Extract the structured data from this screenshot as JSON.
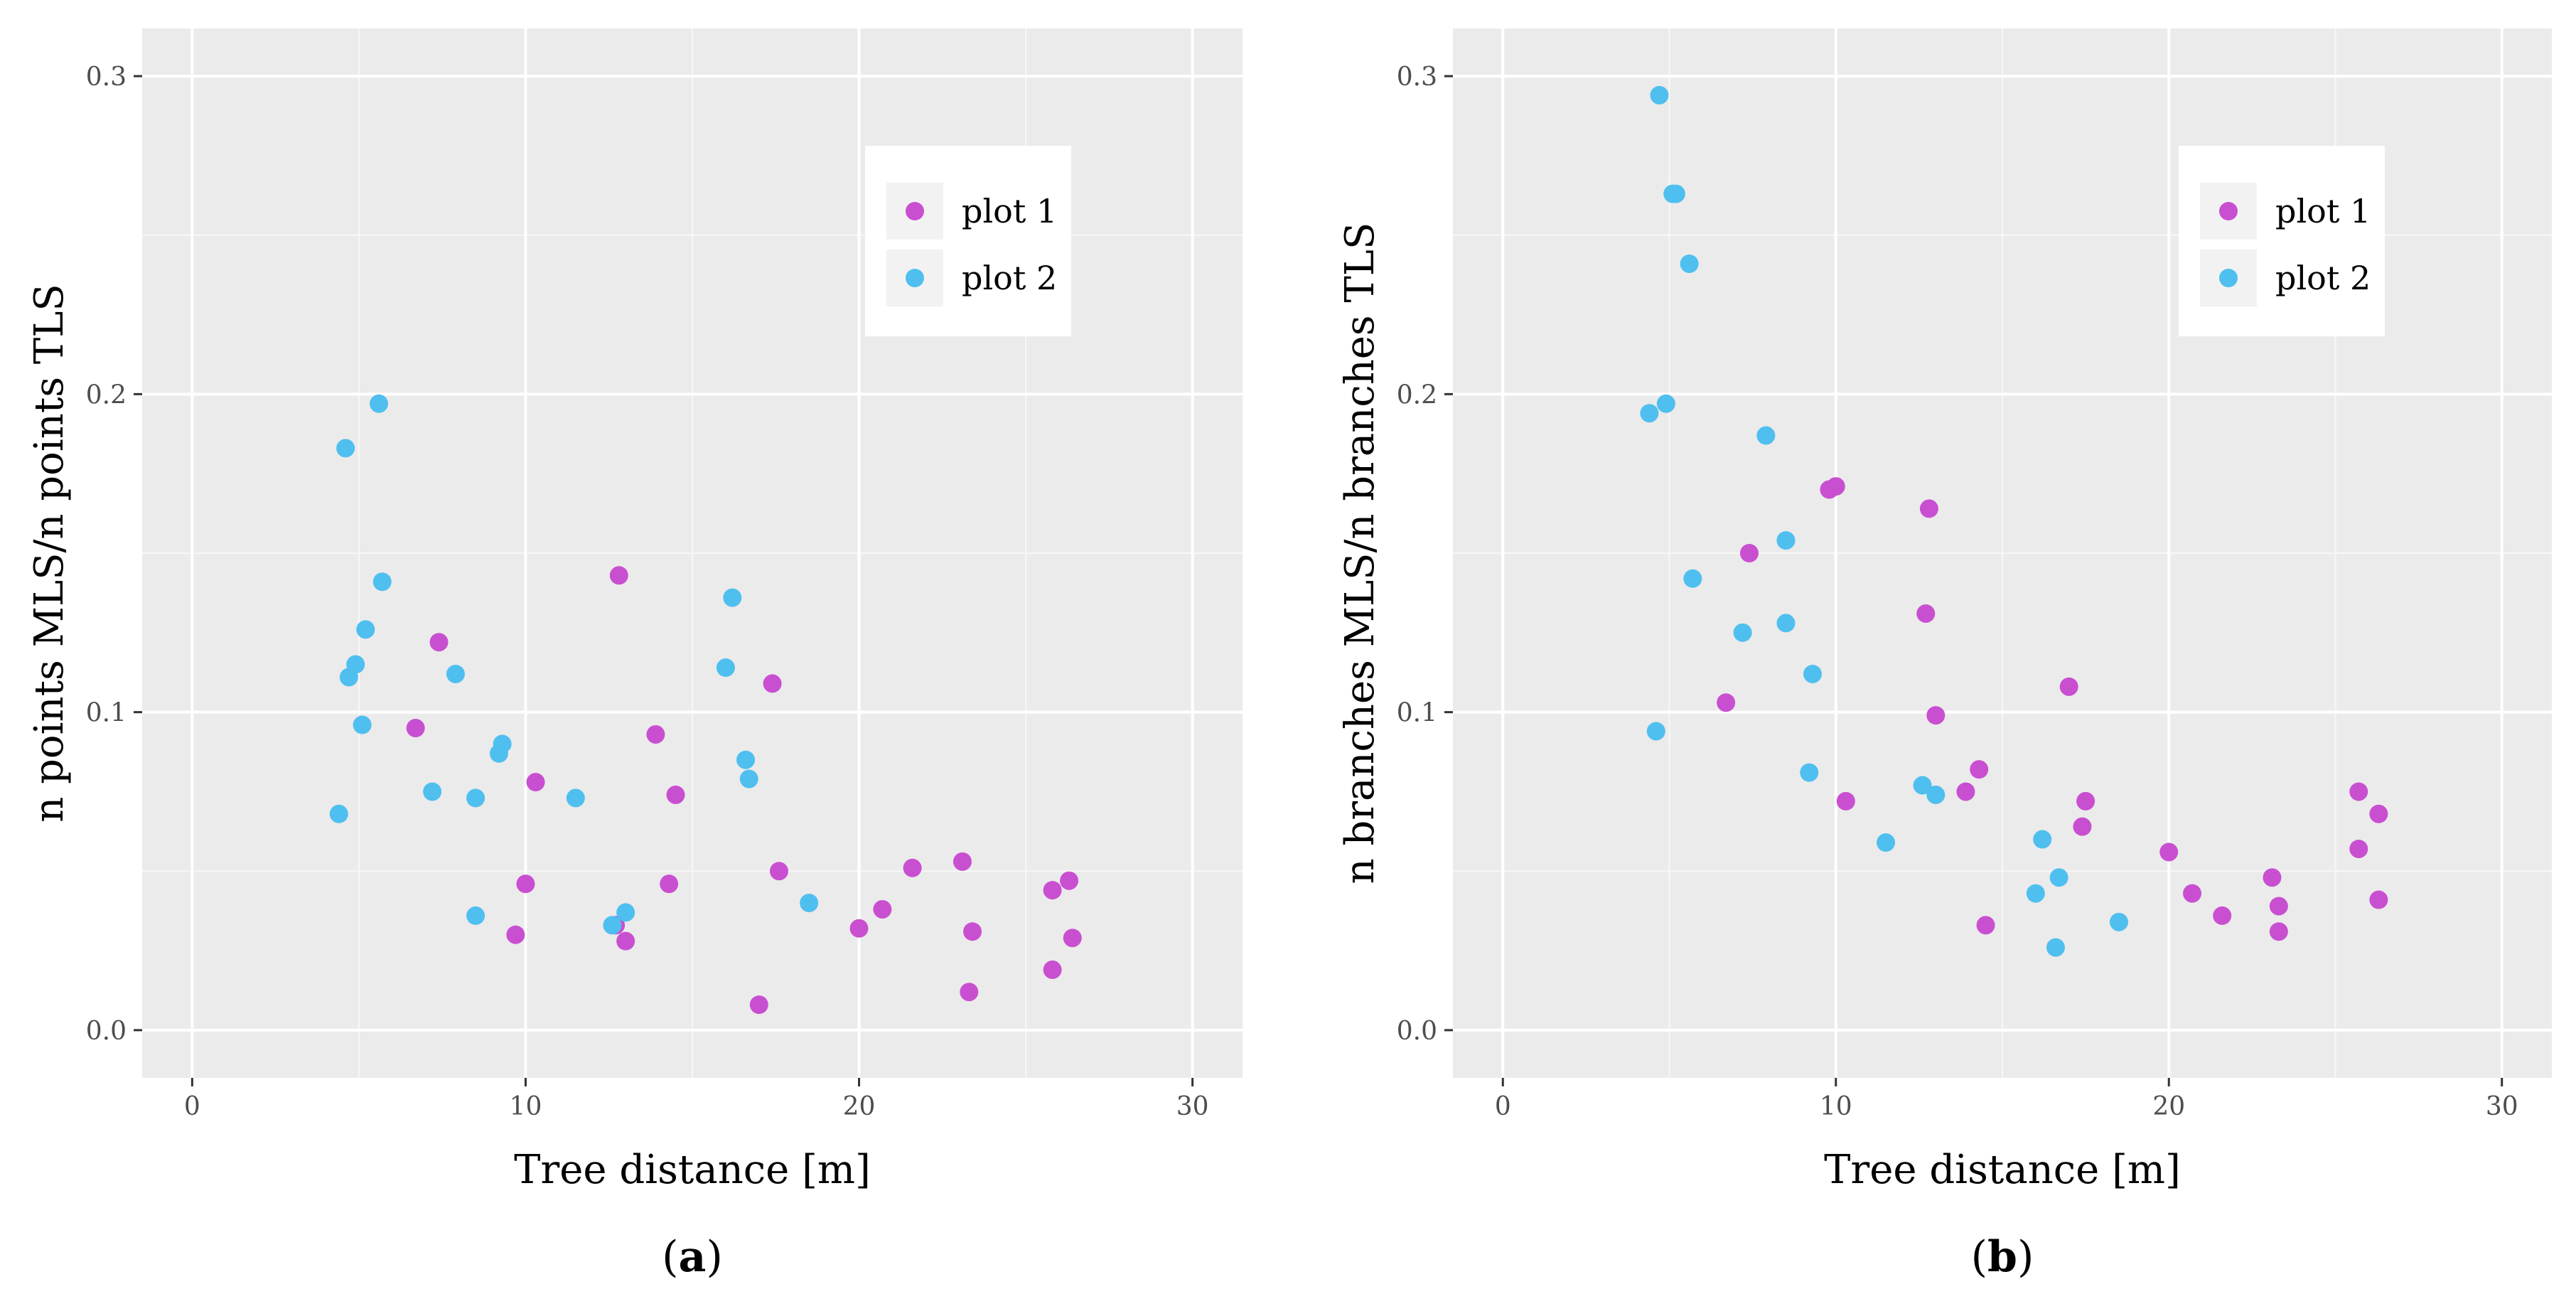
{
  "chart_data": [
    {
      "type": "scatter",
      "caption": "a",
      "xlabel": "Tree distance [m]",
      "ylabel": "n points MLS/n points TLS",
      "xlim": [
        -1.5,
        31.5
      ],
      "ylim": [
        -0.015,
        0.315
      ],
      "xticks": [
        0,
        10,
        20,
        30
      ],
      "xtick_labels": [
        "0",
        "10",
        "20",
        "30"
      ],
      "yticks": [
        0.0,
        0.1,
        0.2,
        0.3
      ],
      "ytick_labels": [
        "0.0",
        "0.1",
        "0.2",
        "0.3"
      ],
      "grid": true,
      "legend_position": "top-right",
      "series": [
        {
          "name": "plot 1",
          "color": "#c94fd1",
          "points": [
            [
              6.7,
              0.095
            ],
            [
              7.4,
              0.122
            ],
            [
              9.7,
              0.03
            ],
            [
              10.0,
              0.046
            ],
            [
              10.3,
              0.078
            ],
            [
              12.8,
              0.143
            ],
            [
              12.7,
              0.033
            ],
            [
              13.0,
              0.028
            ],
            [
              13.9,
              0.093
            ],
            [
              14.3,
              0.046
            ],
            [
              14.5,
              0.074
            ],
            [
              17.0,
              0.008
            ],
            [
              17.4,
              0.109
            ],
            [
              17.6,
              0.05
            ],
            [
              20.0,
              0.032
            ],
            [
              20.7,
              0.038
            ],
            [
              21.6,
              0.051
            ],
            [
              23.1,
              0.053
            ],
            [
              23.3,
              0.012
            ],
            [
              23.4,
              0.031
            ],
            [
              25.8,
              0.044
            ],
            [
              25.8,
              0.019
            ],
            [
              26.3,
              0.047
            ],
            [
              26.4,
              0.029
            ]
          ]
        },
        {
          "name": "plot 2",
          "color": "#4fbfef",
          "points": [
            [
              4.4,
              0.068
            ],
            [
              4.6,
              0.183
            ],
            [
              4.7,
              0.111
            ],
            [
              4.9,
              0.115
            ],
            [
              5.1,
              0.096
            ],
            [
              5.2,
              0.126
            ],
            [
              5.6,
              0.197
            ],
            [
              5.7,
              0.141
            ],
            [
              7.2,
              0.075
            ],
            [
              7.9,
              0.112
            ],
            [
              8.5,
              0.073
            ],
            [
              8.5,
              0.036
            ],
            [
              9.2,
              0.087
            ],
            [
              9.3,
              0.09
            ],
            [
              11.5,
              0.073
            ],
            [
              12.6,
              0.033
            ],
            [
              13.0,
              0.037
            ],
            [
              16.0,
              0.114
            ],
            [
              16.2,
              0.136
            ],
            [
              16.6,
              0.085
            ],
            [
              16.7,
              0.079
            ],
            [
              18.5,
              0.04
            ]
          ]
        }
      ]
    },
    {
      "type": "scatter",
      "caption": "b",
      "xlabel": "Tree distance [m]",
      "ylabel": "n branches MLS/n branches TLS",
      "xlim": [
        -1.5,
        31.5
      ],
      "ylim": [
        -0.015,
        0.315
      ],
      "xticks": [
        0,
        10,
        20,
        30
      ],
      "xtick_labels": [
        "0",
        "10",
        "20",
        "30"
      ],
      "yticks": [
        0.0,
        0.1,
        0.2,
        0.3
      ],
      "ytick_labels": [
        "0.0",
        "0.1",
        "0.2",
        "0.3"
      ],
      "grid": true,
      "legend_position": "top-right",
      "series": [
        {
          "name": "plot 1",
          "color": "#c94fd1",
          "points": [
            [
              6.7,
              0.103
            ],
            [
              7.4,
              0.15
            ],
            [
              9.8,
              0.17
            ],
            [
              10.0,
              0.171
            ],
            [
              10.3,
              0.072
            ],
            [
              12.7,
              0.131
            ],
            [
              12.8,
              0.164
            ],
            [
              13.0,
              0.099
            ],
            [
              13.9,
              0.075
            ],
            [
              14.3,
              0.082
            ],
            [
              14.5,
              0.033
            ],
            [
              17.0,
              0.108
            ],
            [
              17.4,
              0.064
            ],
            [
              17.5,
              0.072
            ],
            [
              20.0,
              0.056
            ],
            [
              20.7,
              0.043
            ],
            [
              21.6,
              0.036
            ],
            [
              23.1,
              0.048
            ],
            [
              23.3,
              0.031
            ],
            [
              23.3,
              0.039
            ],
            [
              25.7,
              0.075
            ],
            [
              25.7,
              0.057
            ],
            [
              26.3,
              0.068
            ],
            [
              26.3,
              0.041
            ]
          ]
        },
        {
          "name": "plot 2",
          "color": "#4fbfef",
          "points": [
            [
              4.4,
              0.194
            ],
            [
              4.6,
              0.094
            ],
            [
              4.7,
              0.294
            ],
            [
              4.9,
              0.197
            ],
            [
              5.1,
              0.263
            ],
            [
              5.2,
              0.263
            ],
            [
              5.6,
              0.241
            ],
            [
              5.7,
              0.142
            ],
            [
              7.2,
              0.125
            ],
            [
              7.9,
              0.187
            ],
            [
              8.5,
              0.128
            ],
            [
              8.5,
              0.154
            ],
            [
              9.2,
              0.081
            ],
            [
              9.3,
              0.112
            ],
            [
              11.5,
              0.059
            ],
            [
              12.6,
              0.077
            ],
            [
              13.0,
              0.074
            ],
            [
              16.0,
              0.043
            ],
            [
              16.2,
              0.06
            ],
            [
              16.6,
              0.026
            ],
            [
              16.7,
              0.048
            ],
            [
              18.5,
              0.034
            ]
          ]
        }
      ]
    }
  ]
}
